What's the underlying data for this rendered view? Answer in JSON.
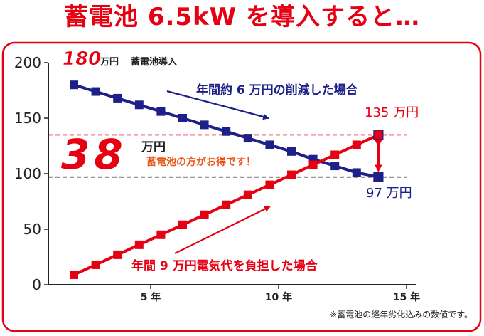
{
  "headline": "蓄電池 6.5kW を導入すると…",
  "colors": {
    "red": "#e60012",
    "navy": "#1d2088",
    "orange": "#ea5514",
    "frame": "#e60012"
  },
  "chart_data": {
    "type": "line",
    "xlim": [
      1,
      15
    ],
    "ylim": [
      0,
      200
    ],
    "grid": false,
    "yticks": [
      "0",
      "50",
      "100",
      "150",
      "200"
    ],
    "xticks": [
      {
        "value": 5,
        "label": "5 年"
      },
      {
        "value": 10,
        "label": "10 年"
      },
      {
        "value": 15,
        "label": "15 年"
      }
    ],
    "x": [
      2,
      2.85,
      3.7,
      4.55,
      5.4,
      6.25,
      7.1,
      7.95,
      8.8,
      9.65,
      10.5,
      11.35,
      12.2,
      13.05,
      13.9
    ],
    "series": [
      {
        "key": "battery",
        "color": "#1d2088",
        "values": [
          180,
          174,
          168,
          162,
          156,
          150,
          144,
          138,
          132,
          126,
          120,
          113,
          107,
          101,
          97
        ],
        "label": "年間約 6 万円の削減した場合"
      },
      {
        "key": "electricity",
        "color": "#e60012",
        "values": [
          9,
          18,
          27,
          36,
          45,
          54,
          63,
          72,
          81,
          90,
          99,
          108,
          117,
          126,
          135
        ],
        "label": "年間 9 万円電気代を負担した場合"
      }
    ],
    "reference_lines": [
      {
        "y": 135,
        "color": "#e60012"
      },
      {
        "y": 97,
        "color": "#333333"
      }
    ],
    "annotations": {
      "start_value": "180",
      "start_unit": "万円",
      "start_text": "蓄電池導入",
      "end_red": "135 万円",
      "end_blue": "97 万円",
      "diff_value": "38",
      "diff_unit": "万円",
      "diff_text": "蓄電池の方がお得です！"
    },
    "footnote": "※蓄電池の経年劣化込みの数値です。"
  }
}
